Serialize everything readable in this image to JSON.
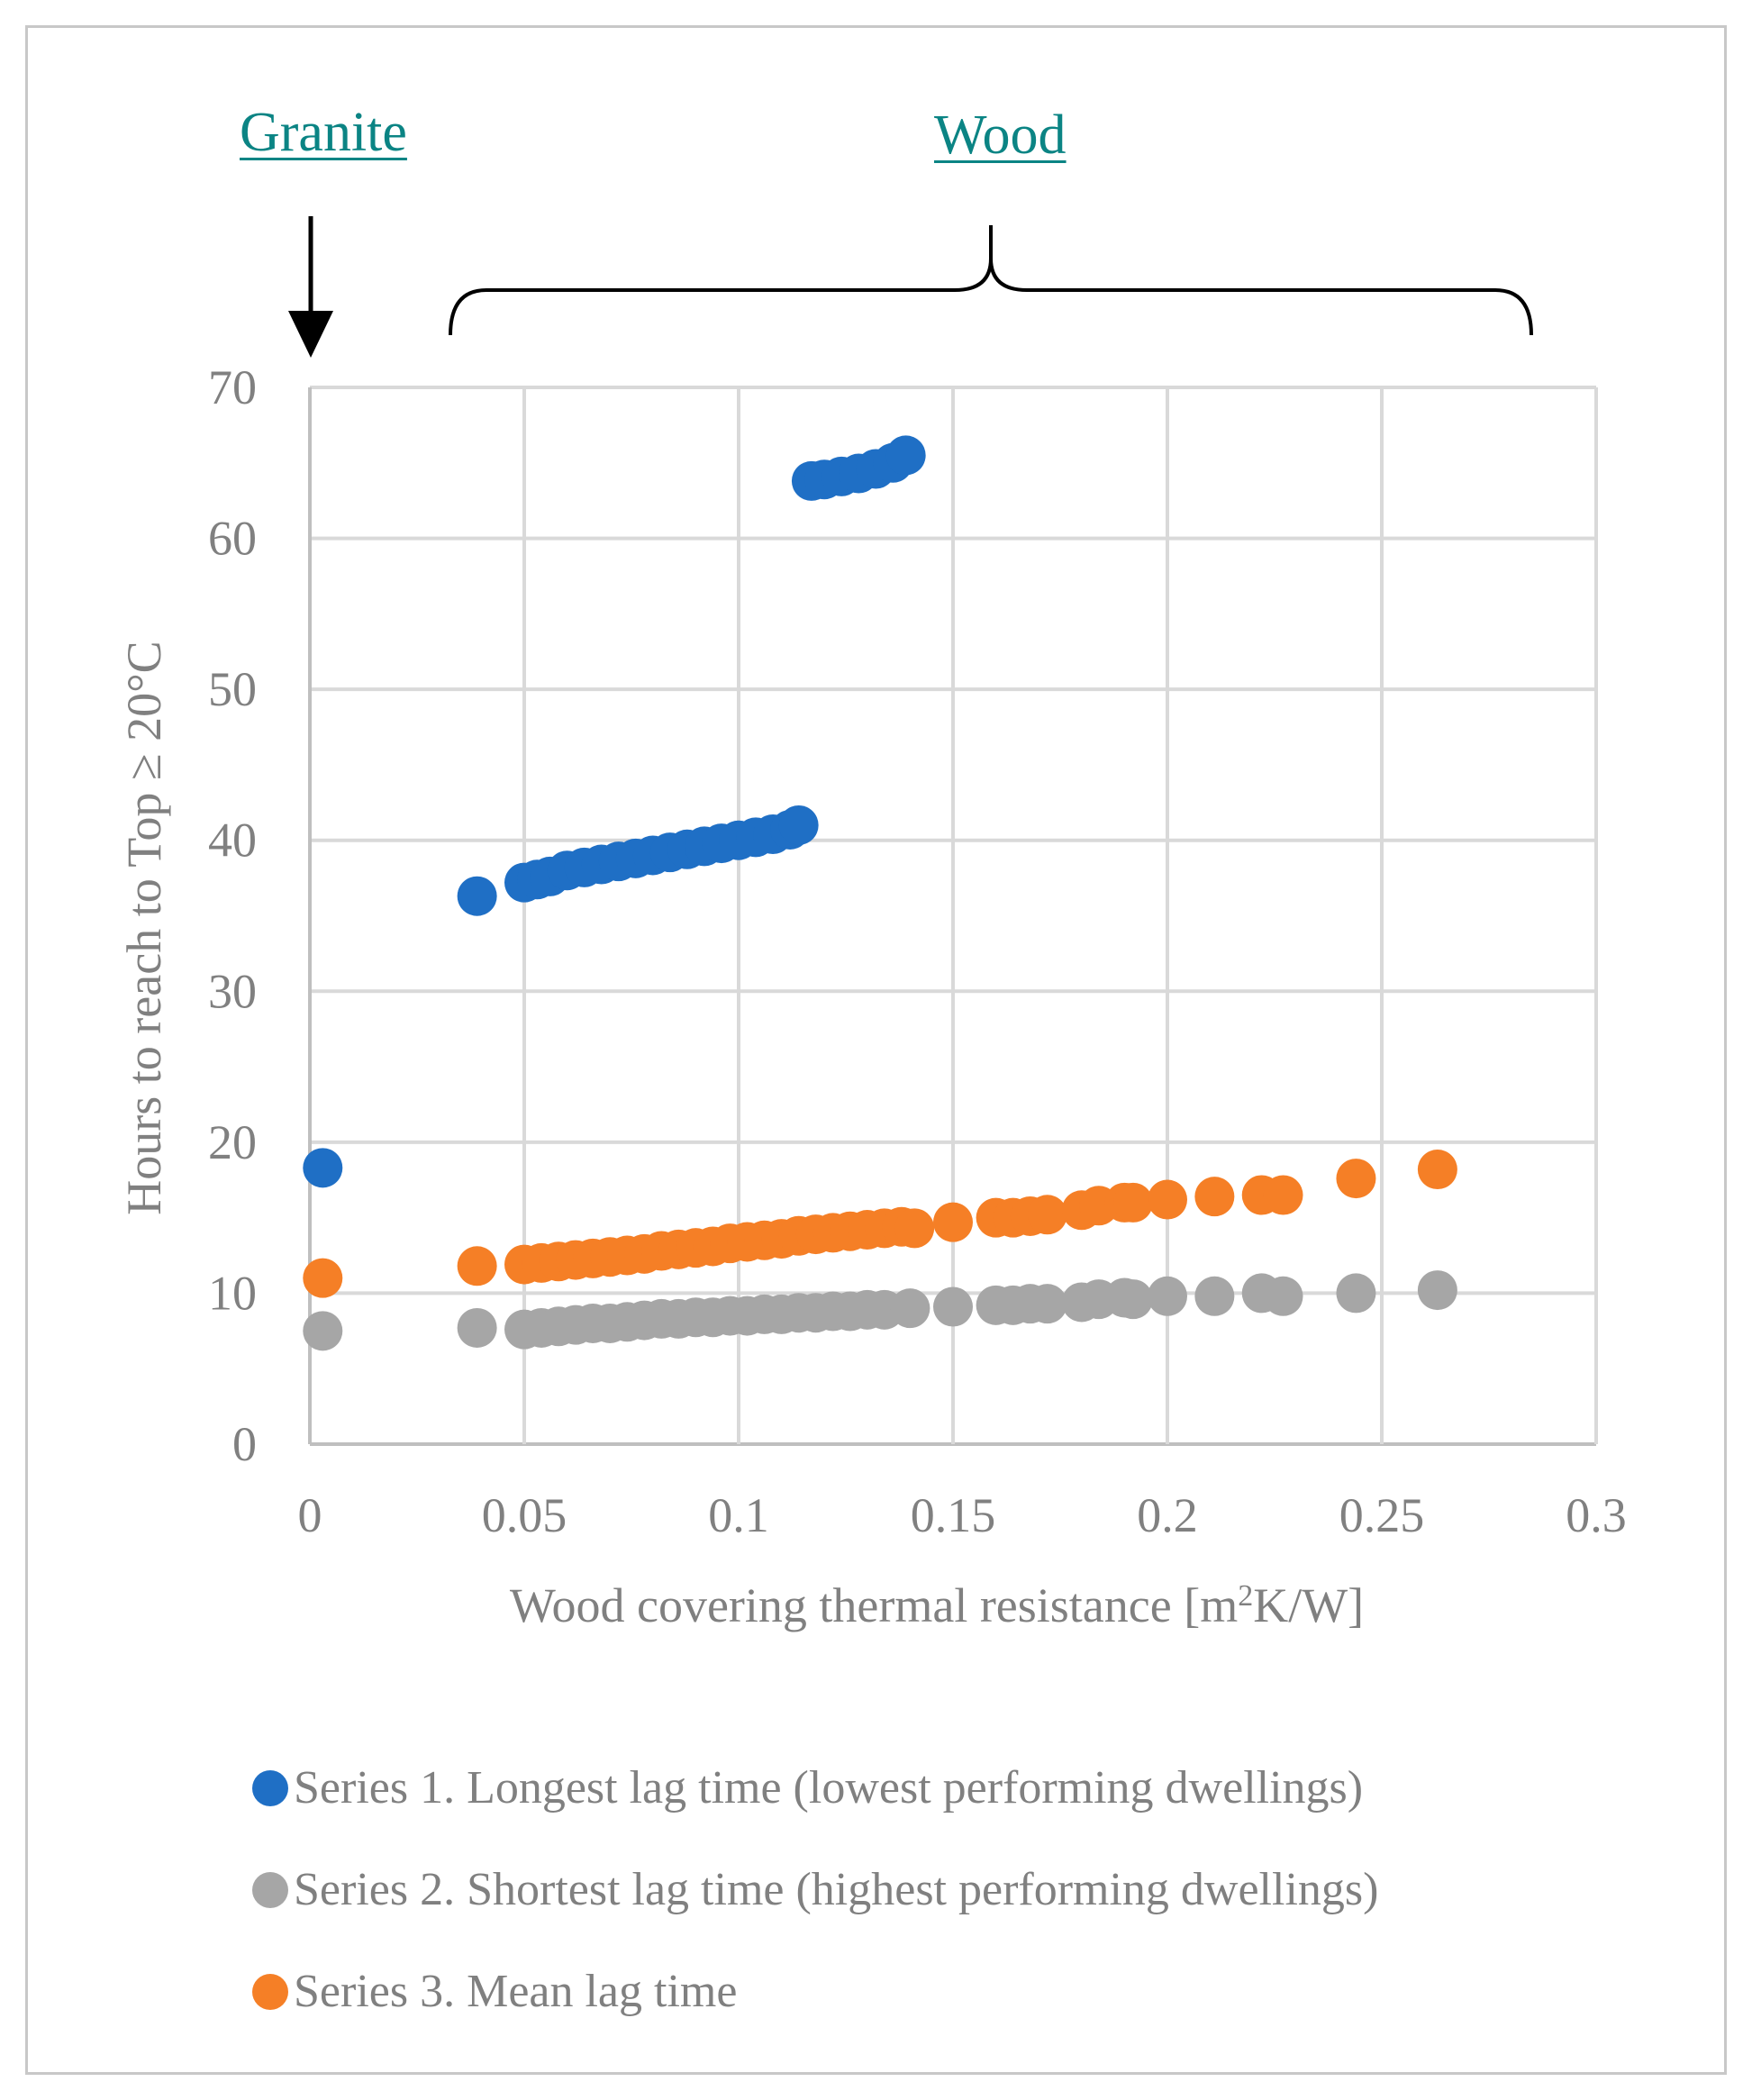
{
  "annotations": {
    "granite": "Granite",
    "wood": "Wood"
  },
  "chart_data": {
    "type": "scatter",
    "xlabel_prefix": "Wood covering thermal resistance [m",
    "xlabel_sup": "2",
    "xlabel_suffix": "K/W]",
    "ylabel": "Hours to reach to Top ≥ 20°C",
    "xlim": [
      0,
      0.3
    ],
    "ylim": [
      0,
      70
    ],
    "x_ticks": [
      0,
      0.05,
      0.1,
      0.15,
      0.2,
      0.25,
      0.3
    ],
    "x_tick_labels": [
      "0",
      "0.05",
      "0.1",
      "0.15",
      "0.2",
      "0.25",
      "0.3"
    ],
    "y_ticks": [
      0,
      10,
      20,
      30,
      40,
      50,
      60,
      70
    ],
    "y_tick_labels": [
      "0",
      "10",
      "20",
      "30",
      "40",
      "50",
      "60",
      "70"
    ],
    "grid": true,
    "series": [
      {
        "name": "Series 1. Longest lag time (lowest performing dwellings)",
        "color": "#1f6fc5",
        "points": [
          [
            0.003,
            18.3
          ],
          [
            0.039,
            36.3
          ],
          [
            0.05,
            37.2
          ],
          [
            0.053,
            37.4
          ],
          [
            0.056,
            37.6
          ],
          [
            0.06,
            38.0
          ],
          [
            0.064,
            38.2
          ],
          [
            0.068,
            38.4
          ],
          [
            0.072,
            38.6
          ],
          [
            0.076,
            38.8
          ],
          [
            0.08,
            39.0
          ],
          [
            0.084,
            39.2
          ],
          [
            0.088,
            39.4
          ],
          [
            0.092,
            39.6
          ],
          [
            0.096,
            39.8
          ],
          [
            0.1,
            40.0
          ],
          [
            0.104,
            40.2
          ],
          [
            0.108,
            40.4
          ],
          [
            0.112,
            40.7
          ],
          [
            0.114,
            41.0
          ],
          [
            0.117,
            63.8
          ],
          [
            0.12,
            63.9
          ],
          [
            0.124,
            64.1
          ],
          [
            0.128,
            64.3
          ],
          [
            0.132,
            64.6
          ],
          [
            0.136,
            65.0
          ],
          [
            0.139,
            65.5
          ]
        ]
      },
      {
        "name": "Series 2. Shortest lag time (highest performing dwellings)",
        "color": "#a6a6a6",
        "points": [
          [
            0.003,
            7.5
          ],
          [
            0.039,
            7.7
          ],
          [
            0.05,
            7.6
          ],
          [
            0.054,
            7.7
          ],
          [
            0.058,
            7.8
          ],
          [
            0.062,
            7.9
          ],
          [
            0.066,
            8.0
          ],
          [
            0.07,
            8.0
          ],
          [
            0.074,
            8.1
          ],
          [
            0.078,
            8.2
          ],
          [
            0.082,
            8.3
          ],
          [
            0.086,
            8.3
          ],
          [
            0.09,
            8.4
          ],
          [
            0.094,
            8.4
          ],
          [
            0.098,
            8.5
          ],
          [
            0.102,
            8.5
          ],
          [
            0.106,
            8.6
          ],
          [
            0.11,
            8.6
          ],
          [
            0.114,
            8.7
          ],
          [
            0.118,
            8.7
          ],
          [
            0.122,
            8.8
          ],
          [
            0.126,
            8.8
          ],
          [
            0.13,
            8.9
          ],
          [
            0.134,
            8.9
          ],
          [
            0.14,
            9.0
          ],
          [
            0.15,
            9.1
          ],
          [
            0.16,
            9.2
          ],
          [
            0.164,
            9.2
          ],
          [
            0.168,
            9.3
          ],
          [
            0.172,
            9.3
          ],
          [
            0.18,
            9.4
          ],
          [
            0.184,
            9.6
          ],
          [
            0.19,
            9.7
          ],
          [
            0.192,
            9.6
          ],
          [
            0.2,
            9.8
          ],
          [
            0.211,
            9.8
          ],
          [
            0.222,
            10.0
          ],
          [
            0.227,
            9.8
          ],
          [
            0.244,
            10.0
          ],
          [
            0.263,
            10.2
          ]
        ]
      },
      {
        "name": "Series 3. Mean lag time",
        "color": "#f57f26",
        "points": [
          [
            0.003,
            11.0
          ],
          [
            0.039,
            11.8
          ],
          [
            0.05,
            11.9
          ],
          [
            0.054,
            12.0
          ],
          [
            0.058,
            12.1
          ],
          [
            0.062,
            12.2
          ],
          [
            0.066,
            12.3
          ],
          [
            0.07,
            12.4
          ],
          [
            0.074,
            12.5
          ],
          [
            0.078,
            12.6
          ],
          [
            0.082,
            12.8
          ],
          [
            0.086,
            12.9
          ],
          [
            0.09,
            13.0
          ],
          [
            0.094,
            13.1
          ],
          [
            0.098,
            13.3
          ],
          [
            0.102,
            13.4
          ],
          [
            0.106,
            13.5
          ],
          [
            0.11,
            13.6
          ],
          [
            0.114,
            13.8
          ],
          [
            0.118,
            13.9
          ],
          [
            0.122,
            14.0
          ],
          [
            0.126,
            14.1
          ],
          [
            0.13,
            14.2
          ],
          [
            0.134,
            14.3
          ],
          [
            0.138,
            14.4
          ],
          [
            0.141,
            14.3
          ],
          [
            0.15,
            14.7
          ],
          [
            0.16,
            15.0
          ],
          [
            0.164,
            15.0
          ],
          [
            0.168,
            15.1
          ],
          [
            0.172,
            15.2
          ],
          [
            0.18,
            15.5
          ],
          [
            0.184,
            15.8
          ],
          [
            0.19,
            16.0
          ],
          [
            0.192,
            16.0
          ],
          [
            0.2,
            16.2
          ],
          [
            0.211,
            16.4
          ],
          [
            0.222,
            16.5
          ],
          [
            0.227,
            16.5
          ],
          [
            0.244,
            17.6
          ],
          [
            0.263,
            18.2
          ]
        ]
      }
    ]
  }
}
